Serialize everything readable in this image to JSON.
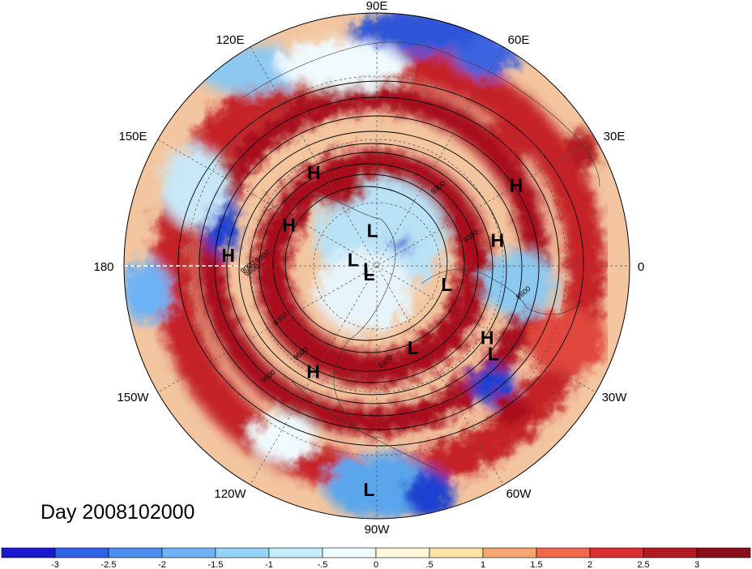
{
  "title": "Day 2008102000",
  "longitude_labels": [
    "90E",
    "60E",
    "30E",
    "0",
    "30W",
    "60W",
    "90W",
    "120W",
    "150W",
    "180",
    "150E",
    "120E"
  ],
  "pressure_systems": [
    {
      "type": "H",
      "lon": 124,
      "lat": 42
    },
    {
      "type": "H",
      "lon": 155,
      "lat": 48
    },
    {
      "type": "H",
      "lon": 176,
      "lat": 29
    },
    {
      "type": "H",
      "lon": 30,
      "lat": 25
    },
    {
      "type": "H",
      "lon": 12,
      "lat": 38
    },
    {
      "type": "H",
      "lon": -33,
      "lat": 35
    },
    {
      "type": "H",
      "lon": -121,
      "lat": 38
    },
    {
      "type": "L",
      "lon": 97,
      "lat": 74
    },
    {
      "type": "L",
      "lon": 166,
      "lat": 79
    },
    {
      "type": "L",
      "lon": -155,
      "lat": 86
    },
    {
      "type": "L",
      "lon": -15,
      "lat": 58
    },
    {
      "type": "L",
      "lon": -66,
      "lat": 51
    },
    {
      "type": "L",
      "lon": -37,
      "lat": 30
    },
    {
      "type": "L",
      "lon": -92,
      "lat": 7
    },
    {
      "type": "L",
      "lon": -134,
      "lat": 85
    }
  ],
  "contour_labels": [
    "9600",
    "9300",
    "9000",
    "9300",
    "9600",
    "9300",
    "9600",
    "9600",
    "9300",
    "9300"
  ],
  "colorbar": {
    "ticks": [
      "-3",
      "-2.5",
      "-2",
      "-1.5",
      "-1",
      "-.5",
      "0",
      ".5",
      "1",
      "1.5",
      "2",
      "2.5",
      "3"
    ],
    "colors": [
      "#1a1acc",
      "#2d61e6",
      "#4a8ef0",
      "#6db3f5",
      "#96d4f7",
      "#c4edfb",
      "#f0fbff",
      "#fff7d9",
      "#fde3a4",
      "#f7a76e",
      "#ee6a4a",
      "#d9312f",
      "#b21a22",
      "#8a0e18"
    ]
  },
  "colors": {
    "strong_positive": "#a8111c",
    "positive": "#e0463d",
    "weak_positive": "#f6b48a",
    "neutral": "#fbf4d8",
    "weak_negative": "#b9e2f6",
    "negative": "#5aa6ec",
    "strong_negative": "#1f3fcf"
  }
}
